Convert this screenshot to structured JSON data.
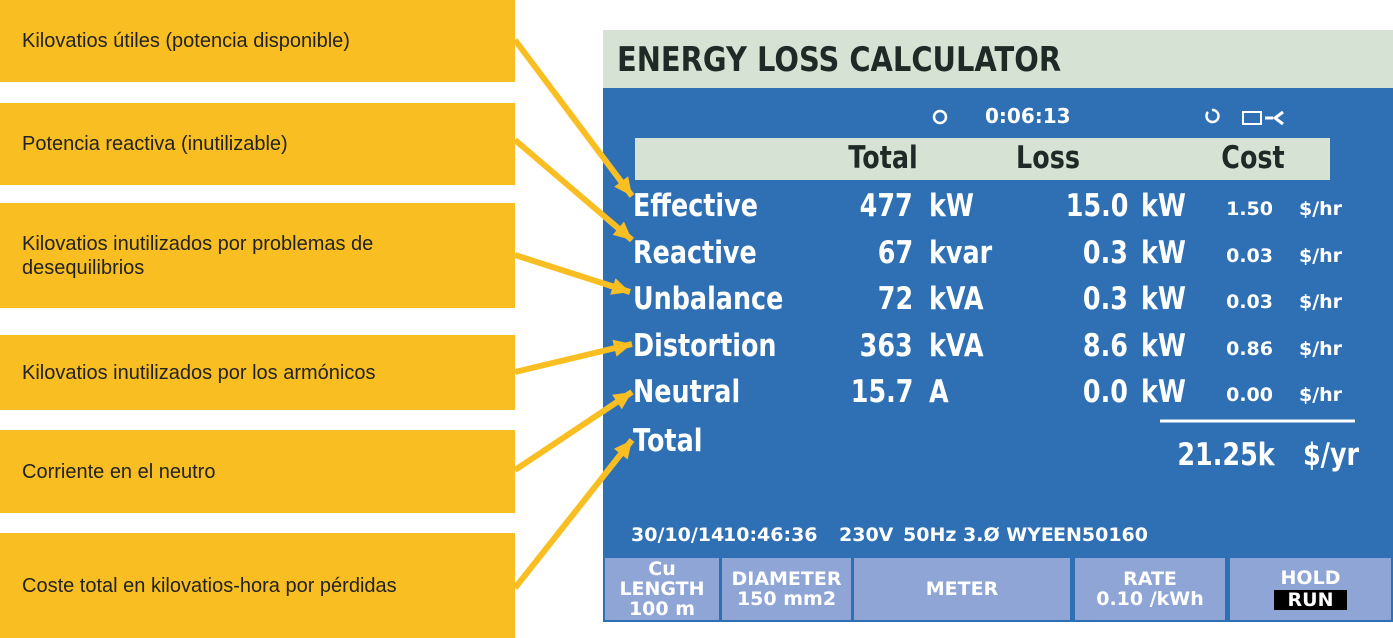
{
  "annotations": [
    "Kilovatios útiles (potencia disponible)",
    "Potencia reactiva (inutilizable)",
    "Kilovatios inutilizados por problemas de desequilibrios",
    "Kilovatios inutilizados por los armónicos",
    "Corriente en el neutro",
    "Coste total en kilovatios-hora por pérdidas"
  ],
  "screen": {
    "title": "ENERGY LOSS CALCULATOR",
    "timer": "0:06:13",
    "columns": [
      "Total",
      "Loss",
      "Cost"
    ],
    "rows": [
      {
        "label": "Effective",
        "total": "477",
        "total_unit": "kW",
        "loss": "15.0",
        "loss_unit": "kW",
        "cost": "1.50",
        "cost_unit": "$/hr"
      },
      {
        "label": "Reactive",
        "total": "67",
        "total_unit": "kvar",
        "loss": "0.3",
        "loss_unit": "kW",
        "cost": "0.03",
        "cost_unit": "$/hr"
      },
      {
        "label": "Unbalance",
        "total": "72",
        "total_unit": "kVA",
        "loss": "0.3",
        "loss_unit": "kW",
        "cost": "0.03",
        "cost_unit": "$/hr"
      },
      {
        "label": "Distortion",
        "total": "363",
        "total_unit": "kVA",
        "loss": "8.6",
        "loss_unit": "kW",
        "cost": "0.86",
        "cost_unit": "$/hr"
      },
      {
        "label": "Neutral",
        "total": "15.7",
        "total_unit": "A",
        "loss": "0.0",
        "loss_unit": "kW",
        "cost": "0.00",
        "cost_unit": "$/hr"
      }
    ],
    "total": {
      "label": "Total",
      "value": "21.25k",
      "unit": "$/yr"
    },
    "footer": [
      "30/10/14",
      "10:46:36",
      "230V",
      "50Hz 3.Ø WYE",
      "EN50160"
    ],
    "softkeys": [
      [
        "Cu LENGTH",
        "100 m"
      ],
      [
        "DIAMETER",
        "150 mm2"
      ],
      [
        "METER"
      ],
      [
        "RATE",
        "0.10 /kWh"
      ],
      [
        "HOLD",
        "RUN"
      ]
    ]
  }
}
